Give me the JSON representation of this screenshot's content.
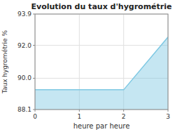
{
  "chart_data": {
    "type": "area",
    "title": "Evolution du taux d'hygrométrie",
    "xlabel": "heure par heure",
    "ylabel": "Taux hygrométrie %",
    "x": [
      0,
      2,
      3
    ],
    "values": [
      89.3,
      89.3,
      92.5
    ],
    "color": "#7ec8e3",
    "xlim": [
      0,
      3
    ],
    "ylim": [
      88.1,
      93.9
    ],
    "xticks": [
      0,
      1,
      2,
      3
    ],
    "yticks": [
      88.1,
      {
        "value": 90.0,
        "label": "90.0"
      },
      {
        "value": 92.0,
        "label": "92.0"
      },
      93.9
    ],
    "grid": true
  }
}
